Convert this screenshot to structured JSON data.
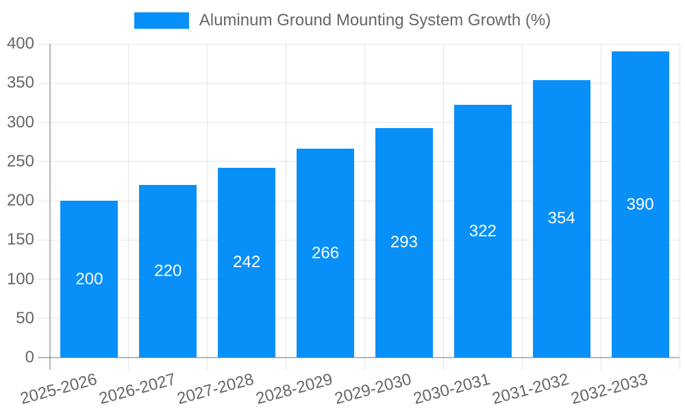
{
  "chart_data": {
    "type": "bar",
    "title": "",
    "legend": {
      "label": "Aluminum Ground Mounting System Growth (%)",
      "position": "top"
    },
    "categories": [
      "2025-2026",
      "2026-2027",
      "2027-2028",
      "2028-2029",
      "2029-2030",
      "2030-2031",
      "2031-2032",
      "2032-2033"
    ],
    "values": [
      200,
      220,
      242,
      266,
      293,
      322,
      354,
      390
    ],
    "value_labels": [
      "200",
      "220",
      "242",
      "266",
      "293",
      "322",
      "354",
      "390"
    ],
    "xlabel": "",
    "ylabel": "",
    "ylim": [
      0,
      400
    ],
    "ytick_step": 50,
    "yticks": [
      "0",
      "50",
      "100",
      "150",
      "200",
      "250",
      "300",
      "350",
      "400"
    ],
    "grid": true,
    "legend_position": "top-center",
    "colors": {
      "bar": "#0990f8",
      "tick_text": "#666666",
      "value_label_text": "#ffffff",
      "gridline": "rgba(0,0,0,0.1)",
      "axis_line": "rgba(0,0,0,0.28)",
      "background": "#ffffff"
    }
  }
}
